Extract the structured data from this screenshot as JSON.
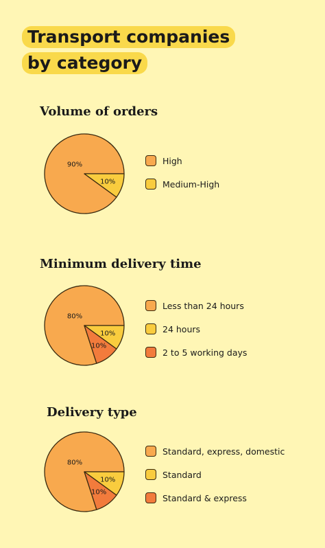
{
  "title_lines": [
    "Transport companies",
    "by category"
  ],
  "colors": {
    "background": "#FFF6B5",
    "highlight": "#F9D94B",
    "orange": "#F8A94E",
    "yellow": "#F9CC3E",
    "red": "#F27B3C",
    "outline": "#3a2a10"
  },
  "chart_data": [
    {
      "type": "pie",
      "title": "Volume of orders",
      "series": [
        {
          "label": "High",
          "value": 90,
          "display": "90%",
          "color": "#F8A94E"
        },
        {
          "label": "Medium-High",
          "value": 10,
          "display": "10%",
          "color": "#F9CC3E"
        }
      ]
    },
    {
      "type": "pie",
      "title": "Minimum delivery time",
      "series": [
        {
          "label": "Less than 24 hours",
          "value": 80,
          "display": "80%",
          "color": "#F8A94E"
        },
        {
          "label": "24 hours",
          "value": 10,
          "display": "10%",
          "color": "#F9CC3E"
        },
        {
          "label": "2 to 5 working days",
          "value": 10,
          "display": "10%",
          "color": "#F27B3C"
        }
      ]
    },
    {
      "type": "pie",
      "title": "Delivery type",
      "series": [
        {
          "label": "Standard, express, domestic",
          "value": 80,
          "display": "80%",
          "color": "#F8A94E"
        },
        {
          "label": "Standard",
          "value": 10,
          "display": "10%",
          "color": "#F9CC3E"
        },
        {
          "label": "Standard & express",
          "value": 10,
          "display": "10%",
          "color": "#F27B3C"
        }
      ]
    }
  ]
}
